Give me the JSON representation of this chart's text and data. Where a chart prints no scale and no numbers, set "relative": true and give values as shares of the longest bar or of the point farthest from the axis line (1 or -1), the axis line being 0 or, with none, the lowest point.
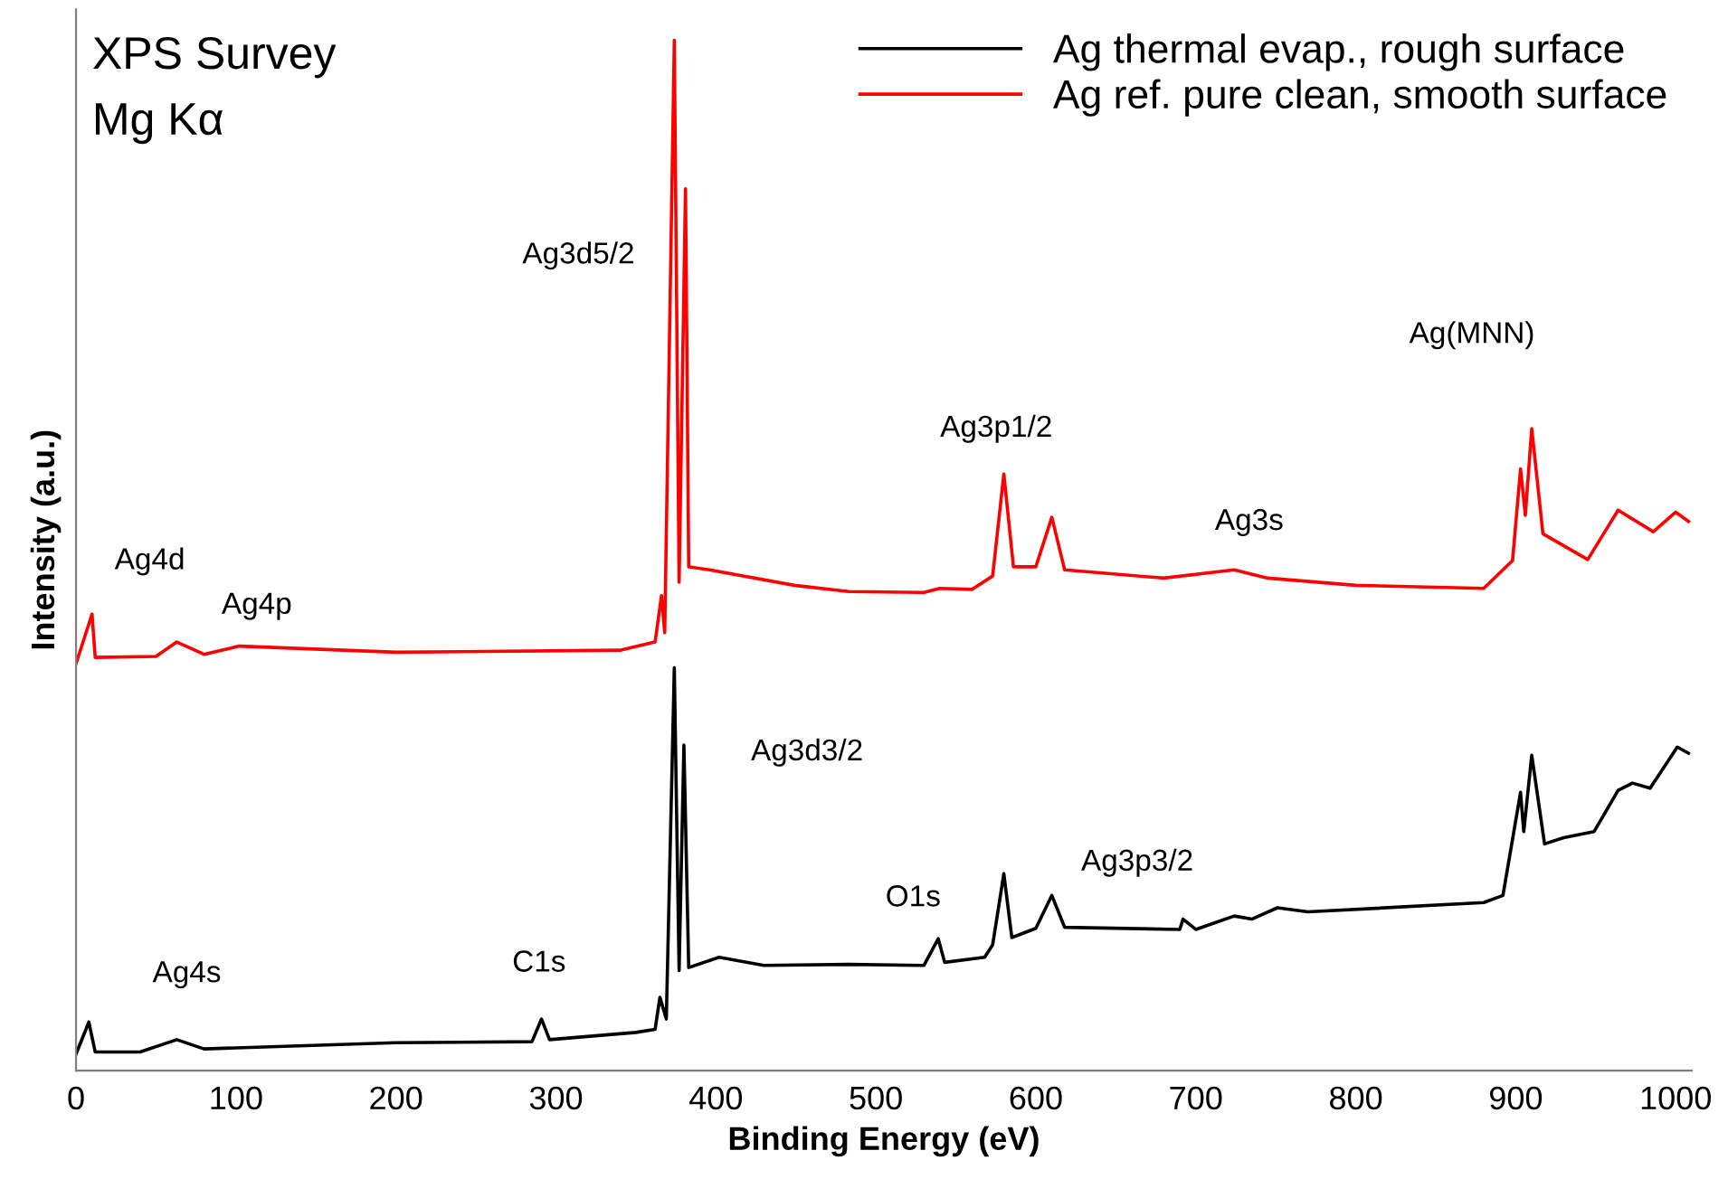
{
  "chart_data": {
    "type": "line",
    "xlabel": "Binding Energy (eV)",
    "ylabel": "Intensity (a.u.)",
    "relative": true,
    "xlim": [
      0,
      1010
    ],
    "xticks": [
      0,
      100,
      200,
      300,
      400,
      500,
      600,
      700,
      800,
      900,
      1000
    ],
    "tick_labels": "x",
    "grid": false,
    "legend": "top right",
    "marker": "none",
    "line_style": "solid",
    "series": [
      {
        "name": "Ag thermal evap., rough surface",
        "color": "#000000",
        "x": [
          0,
          8,
          12,
          40,
          63,
          80,
          100,
          200,
          285,
          291,
          296,
          350,
          362,
          365,
          369,
          374,
          377,
          380,
          383,
          402,
          430,
          483,
          530,
          539,
          543,
          568,
          573,
          580,
          585,
          600,
          610,
          618,
          690,
          692,
          700,
          724,
          735,
          751,
          770,
          880,
          892,
          903,
          905,
          910,
          918,
          930,
          949,
          964,
          973,
          984,
          1001,
          1008
        ],
        "values": [
          0.016,
          0.047,
          0.018,
          0.018,
          0.03,
          0.021,
          0.022,
          0.027,
          0.028,
          0.05,
          0.03,
          0.037,
          0.04,
          0.071,
          0.05,
          0.391,
          0.097,
          0.316,
          0.1,
          0.11,
          0.102,
          0.103,
          0.102,
          0.128,
          0.105,
          0.11,
          0.122,
          0.191,
          0.129,
          0.138,
          0.17,
          0.139,
          0.137,
          0.147,
          0.137,
          0.15,
          0.147,
          0.158,
          0.154,
          0.163,
          0.17,
          0.27,
          0.232,
          0.306,
          0.22,
          0.226,
          0.232,
          0.272,
          0.279,
          0.274,
          0.314,
          0.308
        ]
      },
      {
        "name": "Ag ref. pure clean, smooth surface",
        "color": "#ff0000",
        "x": [
          0,
          10,
          12,
          50,
          63,
          80,
          102,
          200,
          340,
          362,
          366,
          368,
          374,
          377,
          381,
          383,
          396,
          449,
          483,
          530,
          540,
          560,
          573,
          580,
          586,
          600,
          610,
          618,
          680,
          724,
          745,
          800,
          880,
          898,
          903,
          906,
          910,
          917,
          945,
          964,
          986,
          1000,
          1008
        ],
        "values": [
          0.395,
          0.443,
          0.401,
          0.402,
          0.416,
          0.404,
          0.412,
          0.406,
          0.408,
          0.416,
          0.461,
          0.425,
          1.0,
          0.474,
          0.856,
          0.489,
          0.486,
          0.471,
          0.465,
          0.464,
          0.468,
          0.467,
          0.48,
          0.579,
          0.489,
          0.489,
          0.537,
          0.486,
          0.478,
          0.486,
          0.478,
          0.471,
          0.468,
          0.495,
          0.584,
          0.539,
          0.623,
          0.521,
          0.496,
          0.544,
          0.523,
          0.542,
          0.533
        ]
      }
    ],
    "annotations": [
      "XPS Survey",
      "Mg Kα",
      "Ag3d5/2",
      {
        "text": "Ag3d3/2",
        "x": 380,
        "y": 0.316
      },
      {
        "text": "Ag4d",
        "x": 10,
        "y": 0.443
      },
      {
        "text": "Ag4p",
        "x": 102,
        "y": 0.412
      },
      {
        "text": "Ag4s",
        "x": 63,
        "y": 0.03
      },
      {
        "text": "C1s",
        "x": 291,
        "y": 0.05
      },
      {
        "text": "O1s",
        "x": 539,
        "y": 0.128
      },
      {
        "text": "Ag3p3/2",
        "x": 610,
        "y": 0.17
      },
      {
        "text": "Ag3p1/2",
        "x": 580,
        "y": 0.579
      },
      {
        "text": "Ag3s",
        "x": 724,
        "y": 0.486
      },
      "Ag(MNN)"
    ]
  }
}
